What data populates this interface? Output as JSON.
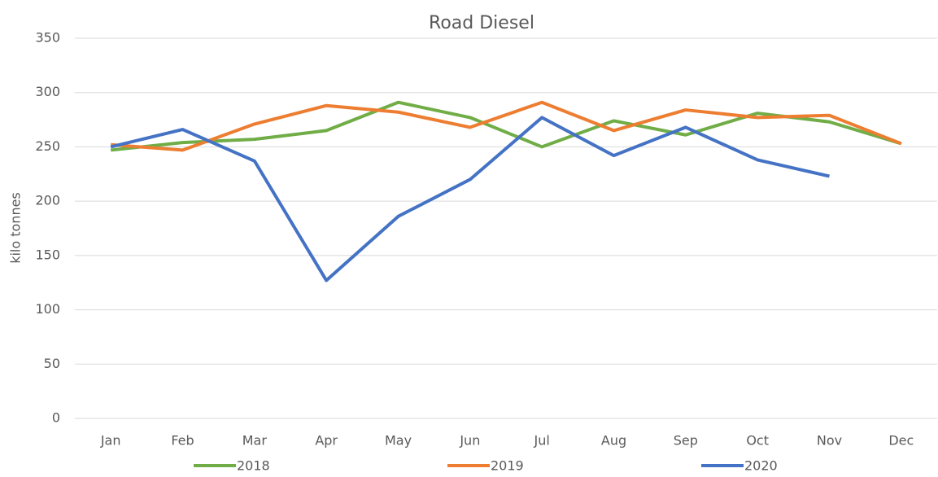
{
  "chart_data": {
    "type": "line",
    "title": "Road Diesel",
    "y_label": "kilo tonnes",
    "categories": [
      "Jan",
      "Feb",
      "Mar",
      "Apr",
      "May",
      "Jun",
      "Jul",
      "Aug",
      "Sep",
      "Oct",
      "Nov",
      "Dec"
    ],
    "series": [
      {
        "name": "2018",
        "color": "#70ad47",
        "values": [
          247,
          254,
          257,
          265,
          291,
          277,
          250,
          274,
          261,
          281,
          273,
          253
        ]
      },
      {
        "name": "2019",
        "color": "#ed7d31",
        "values": [
          252,
          247,
          271,
          288,
          282,
          268,
          291,
          265,
          284,
          277,
          279,
          253
        ]
      },
      {
        "name": "2020",
        "color": "#4472c4",
        "values": [
          250,
          266,
          237,
          127,
          186,
          220,
          277,
          242,
          268,
          238,
          223,
          null
        ]
      }
    ],
    "ylim": [
      0,
      350
    ],
    "yticks": [
      0,
      50,
      100,
      150,
      200,
      250,
      300,
      350
    ],
    "grid": true
  }
}
